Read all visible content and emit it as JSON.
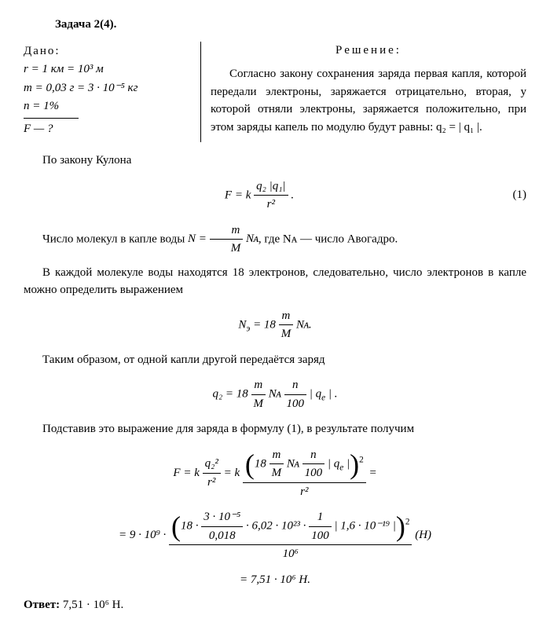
{
  "title": "Задача 2(4).",
  "given": {
    "label": "Дано:",
    "lines": [
      "r = 1 км = 10³ м",
      "m = 0,03 г = 3 · 10⁻⁵ кг",
      "n = 1%"
    ],
    "unknown": "F — ?"
  },
  "solution": {
    "title": "Решение:",
    "intro": "Согласно закону сохранения заряда первая капля, которой передали электроны, заряжается отрицательно, вторая, у которой отняли электроны, заряжается положительно, при этом заряды капель по модулю будут равны: q₂ = | q₁ |."
  },
  "p1": "По закону Кулона",
  "eq1_num": "(1)",
  "p2_a": "Число молекул в капле воды ",
  "p2_b": ", где Nᴀ — число Авогадро.",
  "p3": "В каждой молекуле воды находятся 18 электронов, следовательно, число электронов в капле можно определить выражением",
  "p4": "Таким образом, от одной капли другой передаётся заряд",
  "p5": "Подставив это выражение для заряда в формулу (1), в результате получим",
  "final_line1": "= 9 · 10⁹ ·",
  "final_num_inner": "18 · ",
  "final_frac_num": "3 · 10⁻⁵",
  "final_frac_den": "0,018",
  "final_num_rest": " · 6,02 · 10²³ · ",
  "final_frac2_num": "1",
  "final_frac2_den": "100",
  "final_num_end": " | 1,6 · 10⁻¹⁹ |",
  "final_den": "10⁶",
  "final_unit": " (Н)",
  "final_result": "= 7,51 · 10⁶ Н.",
  "answer_label": "Ответ:",
  "answer_value": " 7,51 · 10⁶ Н."
}
